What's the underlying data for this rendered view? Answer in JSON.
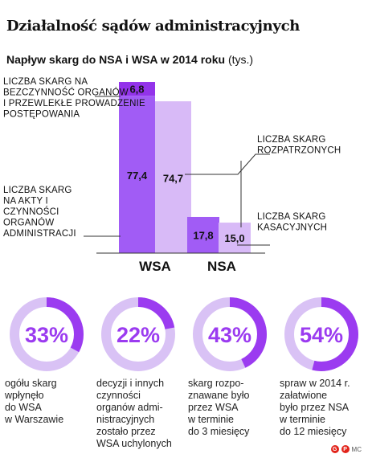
{
  "title": "Działalność sądów administracyjnych",
  "subtitle_bold": "Napływ skarg do NSA i WSA w 2014 roku",
  "subtitle_unit": "(tys.)",
  "colors": {
    "dark": "#a15cf5",
    "light": "#d8baf7",
    "accent": "#9b3bf0",
    "ring_track": "#d9c2f5"
  },
  "chart_data": {
    "type": "bar",
    "categories": [
      "WSA",
      "NSA"
    ],
    "series": [
      {
        "name": "",
        "values": [
          {
            "bottom": 77.4,
            "top": 6.8
          },
          {
            "bottom": 17.8
          }
        ]
      },
      {
        "name": "",
        "values": [
          74.7,
          15.0
        ]
      }
    ],
    "data_labels": [
      "6,8",
      "77,4",
      "74,7",
      "17,8",
      "15,0"
    ],
    "annotations": [
      "LICZBA SKARG NA BEZCZYNNOŚĆ ORGANÓW I PRZEWLEKŁE PROWADZENIE POSTĘPOWANIA",
      "LICZBA SKARG NA AKTY I CZYNNOŚCI ORGANÓW ADMINISTRACJI",
      "LICZBA SKARG ROZPATRZONYCH",
      "LICZBA SKARG KASACYJNYCH"
    ],
    "ylim": [
      0,
      90
    ]
  },
  "stats": [
    {
      "value": 0.33,
      "label": "33%",
      "text": "ogółu skarg wpłynęło do WSA w Warszawie"
    },
    {
      "value": 0.22,
      "label": "22%",
      "text": "decyzji i innych czynności organów administracyjnych zostało przez WSA uchylonych"
    },
    {
      "value": 0.43,
      "label": "43%",
      "text": "skarg rozpoznawane było przez WSA w terminie do 3 miesięcy"
    },
    {
      "value": 0.54,
      "label": "54%",
      "text": "spraw w 2014 r. załatwione było przez NSA w terminie do 12 miesięcy"
    }
  ],
  "credit": "MC"
}
